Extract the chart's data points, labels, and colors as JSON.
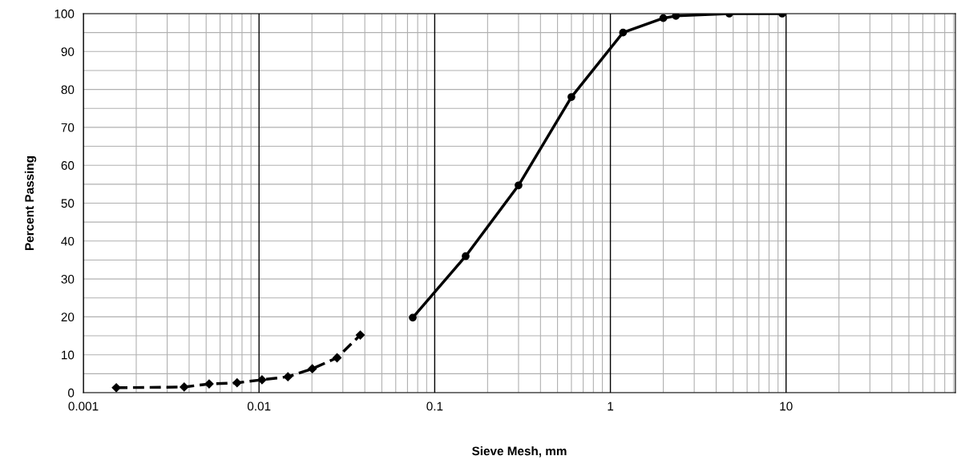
{
  "chart_data": {
    "type": "line",
    "xlabel": "Sieve Mesh, mm",
    "ylabel": "Percent Passing",
    "log": "x",
    "grid": true,
    "xlim": [
      0.001,
      92
    ],
    "xticks": [
      0.001,
      0.01,
      0.1,
      1,
      10
    ],
    "ylim": [
      0,
      100
    ],
    "yticks": [
      0,
      10,
      20,
      30,
      40,
      50,
      60,
      70,
      80,
      90,
      100
    ],
    "series": [
      {
        "color": "#000000",
        "marker": "circle",
        "line_style": "solid",
        "x": [
          0.075,
          0.15,
          0.3,
          0.6,
          1.18,
          2.0,
          2.36,
          4.75,
          9.5
        ],
        "values": [
          19.8,
          36,
          54.7,
          78,
          95,
          98.8,
          99.4,
          100,
          100
        ]
      },
      {
        "color": "#000000",
        "marker": "diamond",
        "line_style": "dashed",
        "x": [
          0.00154,
          0.00375,
          0.0052,
          0.0075,
          0.0104,
          0.0146,
          0.0201,
          0.0278,
          0.0377
        ],
        "values": [
          1.3,
          1.5,
          2.3,
          2.6,
          3.4,
          4.2,
          6.3,
          9.2,
          15.2
        ]
      }
    ]
  }
}
